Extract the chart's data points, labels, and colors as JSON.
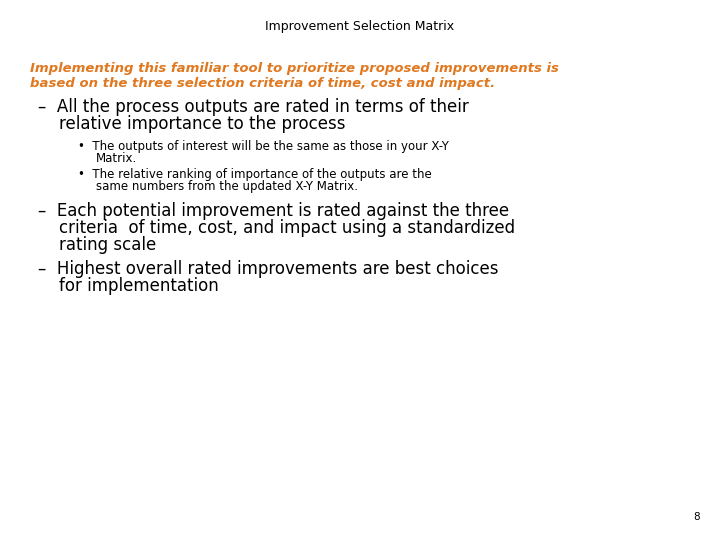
{
  "title": "Improvement Selection Matrix",
  "title_color": "#000000",
  "title_fontsize": 9,
  "subtitle_line1": "Implementing this familiar tool to prioritize proposed improvements is",
  "subtitle_line2": "based on the three selection criteria of time, cost and impact.",
  "subtitle_color": "#E07820",
  "subtitle_fontsize": 9.5,
  "bullet1_line1": "–  All the process outputs are rated in terms of their",
  "bullet1_line2": "    relative importance to the process",
  "bullet_fontsize": 12,
  "sub_bullet1_line1": "The outputs of interest will be the same as those in your X-Y",
  "sub_bullet1_line2": "Matrix.",
  "sub_bullet2_line1": "The relative ranking of importance of the outputs are the",
  "sub_bullet2_line2": "same numbers from the updated X-Y Matrix.",
  "sub_bullet_fontsize": 8.5,
  "bullet2_line1": "–  Each potential improvement is rated against the three",
  "bullet2_line2": "    criteria  of time, cost, and impact using a standardized",
  "bullet2_line3": "    rating scale",
  "bullet3_line1": "–  Highest overall rated improvements are best choices",
  "bullet3_line2": "    for implementation",
  "page_number": "8",
  "bg_color": "#ffffff",
  "text_color": "#000000"
}
